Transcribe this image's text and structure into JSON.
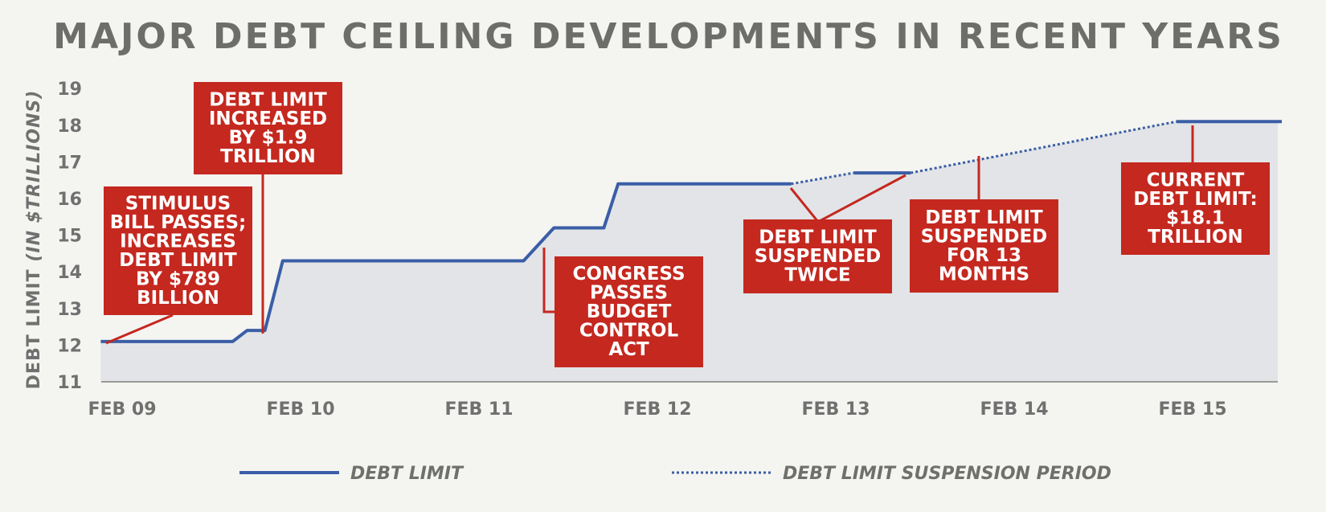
{
  "chart_data": {
    "type": "line",
    "title": "MAJOR DEBT CEILING DEVELOPMENTS IN RECENT YEARS",
    "ylabel_main": "DEBT LIMIT",
    "ylabel_unit": "(IN $TRILLIONS)",
    "ylim": [
      11,
      19
    ],
    "yticks": [
      11,
      12,
      13,
      14,
      15,
      16,
      17,
      18,
      19
    ],
    "xticks": [
      {
        "label": "FEB 09",
        "x": 0
      },
      {
        "label": "FEB 10",
        "x": 1
      },
      {
        "label": "FEB 11",
        "x": 2
      },
      {
        "label": "FEB 12",
        "x": 3
      },
      {
        "label": "FEB 13",
        "x": 4
      },
      {
        "label": "FEB 14",
        "x": 5
      },
      {
        "label": "FEB 15",
        "x": 6
      }
    ],
    "xlim": [
      0,
      6.5
    ],
    "series": [
      {
        "name": "DEBT LIMIT",
        "style": "solid",
        "segments": [
          [
            [
              -0.12,
              12.1
            ],
            [
              0.62,
              12.1
            ],
            [
              0.7,
              12.4
            ],
            [
              0.8,
              12.4
            ],
            [
              0.9,
              14.3
            ],
            [
              2.25,
              14.3
            ],
            [
              2.42,
              15.2
            ],
            [
              2.7,
              15.2
            ],
            [
              2.78,
              16.4
            ],
            [
              3.75,
              16.4
            ]
          ],
          [
            [
              4.1,
              16.7
            ],
            [
              4.42,
              16.7
            ]
          ],
          [
            [
              5.91,
              18.1
            ],
            [
              6.5,
              18.1
            ]
          ]
        ]
      },
      {
        "name": "DEBT LIMIT SUSPENSION PERIOD",
        "style": "dotted",
        "segments": [
          [
            [
              3.75,
              16.4
            ],
            [
              4.1,
              16.7
            ]
          ],
          [
            [
              4.42,
              16.7
            ],
            [
              5.91,
              18.1
            ]
          ]
        ]
      }
    ],
    "annotations": [
      {
        "lines": [
          "STIMULUS",
          "BILL PASSES;",
          "INCREASES",
          "DEBT LIMIT",
          "BY $789",
          "BILLION"
        ]
      },
      {
        "lines": [
          "DEBT LIMIT",
          "INCREASED",
          "BY $1.9",
          "TRILLION"
        ]
      },
      {
        "lines": [
          "CONGRESS",
          "PASSES",
          "BUDGET",
          "CONTROL",
          "ACT"
        ]
      },
      {
        "lines": [
          "DEBT LIMIT",
          "SUSPENDED",
          "TWICE"
        ]
      },
      {
        "lines": [
          "DEBT LIMIT",
          "SUSPENDED",
          "FOR 13",
          "MONTHS"
        ]
      },
      {
        "lines": [
          "CURRENT",
          "DEBT LIMIT:",
          "$18.1",
          "TRILLION"
        ]
      }
    ],
    "legend": {
      "position": "bottom",
      "entries": [
        "DEBT LIMIT",
        "DEBT LIMIT SUSPENSION PERIOD"
      ]
    },
    "colors": {
      "line": "#3a5ea6",
      "annotation": "#c4281f",
      "fill": "#e2e4e7",
      "background": "#f4f4f1",
      "text": "#707070"
    },
    "grid": false
  }
}
